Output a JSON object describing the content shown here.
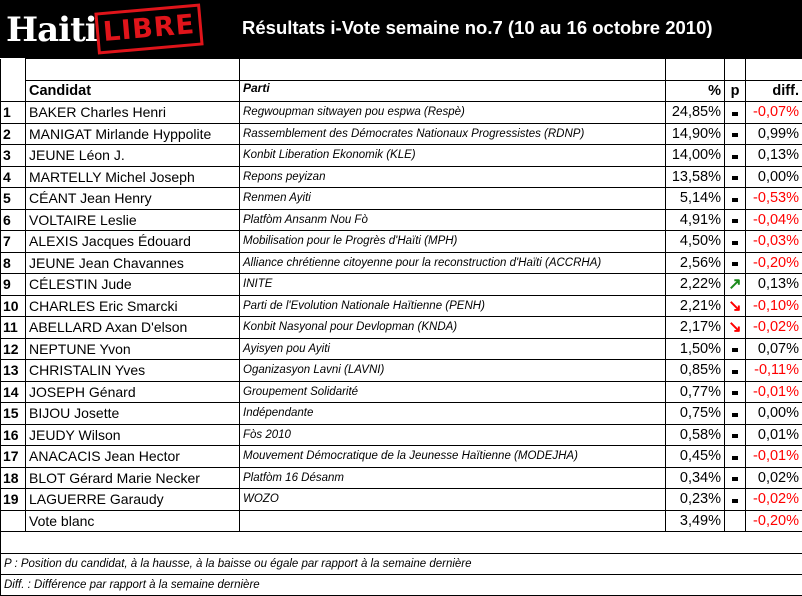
{
  "header": {
    "logo_text": "Haiti LIBRE",
    "title": "Résultats i-Vote semaine no.7 (10 au 16 octobre 2010)"
  },
  "table": {
    "columns": {
      "candidat": "Candidat",
      "parti": "Parti",
      "pct": "%",
      "p": "p",
      "diff": "diff."
    },
    "rows": [
      {
        "n": "1",
        "name": "BAKER Charles Henri",
        "party": "Regwoupman sitwayen pou espwa (Respè)",
        "pct": "24,85%",
        "p": "equal",
        "diff": "-0,07%"
      },
      {
        "n": "2",
        "name": "MANIGAT Mirlande Hyppolite",
        "party": "Rassemblement des Démocrates Nationaux Progressistes (RDNP)",
        "pct": "14,90%",
        "p": "equal",
        "diff": "0,99%"
      },
      {
        "n": "3",
        "name": "JEUNE Léon J.",
        "party": "Konbit Liberation Ekonomik (KLE)",
        "pct": "14,00%",
        "p": "equal",
        "diff": "0,13%"
      },
      {
        "n": "4",
        "name": "MARTELLY Michel Joseph",
        "party": "Repons peyizan",
        "pct": "13,58%",
        "p": "equal",
        "diff": "0,00%"
      },
      {
        "n": "5",
        "name": "CÉANT Jean Henry",
        "party": "Renmen Ayiti",
        "pct": "5,14%",
        "p": "equal",
        "diff": "-0,53%"
      },
      {
        "n": "6",
        "name": "VOLTAIRE Leslie",
        "party": "Platfòm Ansanm Nou Fò",
        "pct": "4,91%",
        "p": "equal",
        "diff": "-0,04%"
      },
      {
        "n": "7",
        "name": "ALEXIS Jacques Édouard",
        "party": "Mobilisation pour le Progrès d'Haïti (MPH)",
        "pct": "4,50%",
        "p": "equal",
        "diff": "-0,03%"
      },
      {
        "n": "8",
        "name": "JEUNE Jean Chavannes",
        "party": "Alliance chrétienne citoyenne pour la reconstruction d'Haïti (ACCRHA)",
        "pct": "2,56%",
        "p": "equal",
        "diff": "-0,20%"
      },
      {
        "n": "9",
        "name": "CÉLESTIN Jude",
        "party": "INITE",
        "pct": "2,22%",
        "p": "up",
        "diff": "0,13%"
      },
      {
        "n": "10",
        "name": "CHARLES Eric Smarcki",
        "party": "Parti de l'Evolution Nationale Haïtienne (PENH)",
        "pct": "2,21%",
        "p": "down",
        "diff": "-0,10%"
      },
      {
        "n": "11",
        "name": "ABELLARD Axan D'elson",
        "party": "Konbit Nasyonal pour Devlopman (KNDA)",
        "pct": "2,17%",
        "p": "down",
        "diff": "-0,02%"
      },
      {
        "n": "12",
        "name": "NEPTUNE Yvon",
        "party": "Ayisyen pou Ayiti",
        "pct": "1,50%",
        "p": "equal",
        "diff": "0,07%"
      },
      {
        "n": "13",
        "name": "CHRISTALIN Yves",
        "party": "Oganizasyon Lavni (LAVNI)",
        "pct": "0,85%",
        "p": "equal",
        "diff": "-0,11%"
      },
      {
        "n": "14",
        "name": "JOSEPH Génard",
        "party": "Groupement Solidarité",
        "pct": "0,77%",
        "p": "equal",
        "diff": "-0,01%"
      },
      {
        "n": "15",
        "name": "BIJOU Josette",
        "party": "Indépendante",
        "pct": "0,75%",
        "p": "equal",
        "diff": "0,00%"
      },
      {
        "n": "16",
        "name": "JEUDY Wilson",
        "party": "Fòs 2010",
        "pct": "0,58%",
        "p": "equal",
        "diff": "0,01%"
      },
      {
        "n": "17",
        "name": "ANACACIS Jean Hector",
        "party": "Mouvement Démocratique de la Jeunesse Haïtienne (MODEJHA)",
        "pct": "0,45%",
        "p": "equal",
        "diff": "-0,01%"
      },
      {
        "n": "18",
        "name": "BLOT Gérard Marie Necker",
        "party": "Platfòm 16 Désanm",
        "pct": "0,34%",
        "p": "equal",
        "diff": "0,02%"
      },
      {
        "n": "19",
        "name": "LAGUERRE Garaudy",
        "party": "WOZO",
        "pct": "0,23%",
        "p": "equal",
        "diff": "-0,02%"
      },
      {
        "n": "",
        "name": "Vote blanc",
        "party": "",
        "pct": "3,49%",
        "p": "",
        "diff": "-0,20%"
      }
    ]
  },
  "notes": [
    "P : Position du candidat, à la hausse,  à la baisse ou égale par rapport à la semaine dernière",
    "Diff. : Différence par rapport à la semaine dernière"
  ],
  "colors": {
    "negative": "#ff0000",
    "up": "#1a8a1a",
    "down": "#ff0000",
    "logo_red": "#e0141a"
  }
}
